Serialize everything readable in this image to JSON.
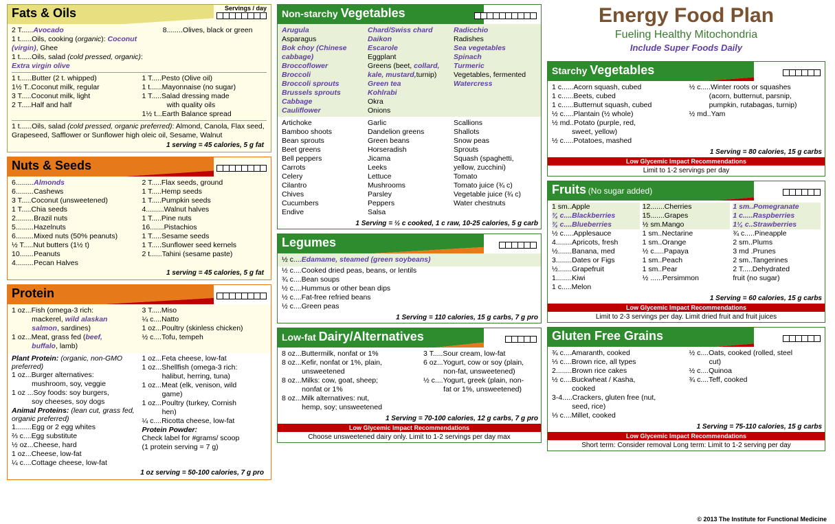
{
  "colors": {
    "yellow": "#fffce8",
    "olive": "#a8a050",
    "orange": "#e67a1a",
    "green": "#2e8b2e",
    "red": "#c00000",
    "purple": "#5f3fa3",
    "brown": "#7a5230",
    "tint": "#e8f0d8",
    "greenBorder": "#3a7a2e"
  },
  "title": {
    "h1": "Energy Food Plan",
    "h2": "Fueling Healthy Mitochondria",
    "h3": "Include Super Foods Daily"
  },
  "copyright": "© 2013 The Institute for Functional Medicine",
  "servingsLabel": "Servings / day",
  "cards": {
    "fats": {
      "title": [
        "Fats & Oils"
      ],
      "boxes": 8,
      "border": "#a8a050",
      "bg": "#fffce8",
      "top": [
        [
          "2 T......",
          "Avocado",
          true
        ],
        [
          "1 t......Oils, cooking (organic): ",
          "Coconut (virgin)",
          true,
          ", Ghee"
        ],
        [
          "1 t......Oils, salad (cold pressed, organic): ",
          "Extra virgin olive",
          true
        ]
      ],
      "topRight": [
        "8........Olives, black or green"
      ],
      "mid": {
        "left": [
          "1 t......Butter (2 t. whipped)",
          "1½ T..Coconut milk, regular",
          "3 T.....Coconut milk, light",
          "2 T.....Half and half"
        ],
        "right": [
          "1 T.....Pesto (Olive oil)",
          "1 t......Mayonnaise (no sugar)",
          "1 T.....Salad dressing made",
          "            with quality oils",
          "1½ t...Earth Balance spread"
        ]
      },
      "bottom": "1 t......Oils, salad (cold pressed, organic preferred): Almond, Canola, Flax seed, Grapeseed, Safflower or Sunflower high oleic oil, Sesame, Walnut",
      "note": "1 serving = 45 calories, 5 g fat"
    },
    "nuts": {
      "title": [
        "Nuts & Seeds"
      ],
      "boxes": 8,
      "border": "#e67a1a",
      "bg": "#fffce8",
      "left": [
        [
          "6.........",
          "Almonds",
          true
        ],
        [
          "6.........Cashews"
        ],
        [
          "3 T.....Coconut (unsweetened)"
        ],
        [
          "1 T.....Chia seeds"
        ],
        [
          "2.........Brazil nuts"
        ],
        [
          "5.........Hazelnuts"
        ],
        [
          "6.........Mixed nuts (50% peanuts)"
        ],
        [
          "½ T.....Nut butters (1½ t)"
        ],
        [
          "10.......Peanuts"
        ],
        [
          "4.........Pecan Halves"
        ]
      ],
      "right": [
        [
          "2 T.....Flax seeds, ground"
        ],
        [
          "1 T.....Hemp seeds"
        ],
        [
          "1 T.....Pumpkin seeds"
        ],
        [
          "4.........Walnut halves"
        ],
        [
          "1 T.....Pine nuts"
        ],
        [
          "16.......Pistachios"
        ],
        [
          "1 T.....Sesame seeds"
        ],
        [
          "1 T.....Sunflower seed kernels"
        ],
        [
          "2 t......Tahini (sesame paste)"
        ]
      ],
      "note": "1 serving = 45 calories, 5 g fat"
    },
    "protein": {
      "title": [
        "Protein"
      ],
      "boxes": 8,
      "border": "#e67a1a",
      "bg": "#ffffff",
      "topLeft": [
        "1 oz...Fish (omega-3 rich: mackerel, <em>wild alaskan salmon</em>, sardines)",
        "1 oz...Meat, grass fed (<em>beef, buffalo</em>, lamb)"
      ],
      "topRight": [
        "3 T.....Miso",
        "¼ c....Natto",
        "1 oz...Poultry (skinless chicken)",
        "½ c....Tofu, tempeh"
      ],
      "subLeft": "Plant Protein: (organic, non-GMO preferred)",
      "plantLeft": [
        "1 oz...Burger alternatives: mushroom, soy, veggie",
        "1 oz ...Soy foods: soy burgers, soy cheeses, soy dogs"
      ],
      "subAnimal": "Animal Proteins: (lean cut, grass fed, organic preferred)",
      "animalLeft": [
        "1........Egg or 2 egg whites",
        "⅔ c....Egg substitute",
        "½ oz...Cheese, hard",
        "1 oz...Cheese, low-fat",
        "¼ c....Cottage cheese, low-fat"
      ],
      "rightCol": [
        "1 oz...Feta cheese, low-fat",
        "1 oz...Shellfish (omega-3 rich: halibut, herring, tuna)",
        "1 oz...Meat (elk, venison, wild game)",
        "1 oz...Poultry (turkey, Cornish hen)",
        "¼ c....Ricotta cheese, low-fat"
      ],
      "powder": [
        "Protein Powder:",
        "Check label for #grams/ scoop",
        "(1 protein serving = 7 g)"
      ],
      "note": "1 oz serving = 50-100 calories, 7 g pro"
    },
    "veg": {
      "titlePre": "Non-starchy ",
      "titleBig": "Vegetables",
      "boxes": 10,
      "border": "#3a7a2e",
      "emRows": [
        [
          "Arugula",
          "Chard/Swiss chard",
          "Radicchio"
        ],
        [
          "<n>Asparagus</n>",
          "Daikon",
          "<n>Radishes</n>"
        ],
        [
          "Bok choy (Chinese",
          "Escarole",
          "Sea vegetables"
        ],
        [
          "cabbage)",
          "<n>Eggplant</n>",
          "Spinach"
        ],
        [
          "Broccoflower",
          "<n>Greens (beet, </n>collard,",
          "Turmeric"
        ],
        [
          "Broccoli",
          "kale, mustard,<n>turnip)</n>",
          "<n>Vegetables, fermented</n>"
        ],
        [
          "Broccoli sprouts",
          "Green tea",
          "Watercress"
        ],
        [
          "Brussels sprouts",
          "Kohlrabi",
          ""
        ],
        [
          "Cabbage",
          "<n>Okra</n>",
          ""
        ],
        [
          "Cauliflower",
          "<n>Onions</n>",
          ""
        ]
      ],
      "plain": [
        [
          "Artichoke",
          "Garlic",
          "Scallions"
        ],
        [
          "Bamboo shoots",
          "Dandelion greens",
          "Shallots"
        ],
        [
          "Bean sprouts",
          "Green beans",
          "Snow peas"
        ],
        [
          "Beet greens",
          "Horseradish",
          "Sprouts"
        ],
        [
          "Bell peppers",
          "Jicama",
          "Squash (spaghetti,"
        ],
        [
          "Carrots",
          "Leeks",
          "   yellow, zucchini)"
        ],
        [
          "Celery",
          "Lettuce",
          "Tomato"
        ],
        [
          "Cilantro",
          "Mushrooms",
          "Tomato juice (¾ c)"
        ],
        [
          "Chives",
          "Parsley",
          "Vegetable juice (¾ c)"
        ],
        [
          "Cucumbers",
          "Peppers",
          "Water chestnuts"
        ],
        [
          "Endive",
          "Salsa",
          ""
        ]
      ],
      "note": "1 Serving = ½ c cooked, 1 c raw, 10-25 calories, 5 g carb"
    },
    "legumes": {
      "title": [
        "Legumes"
      ],
      "boxes": 6,
      "border": "#3a7a2e",
      "items": [
        [
          "½ c....",
          "Edamame, steamed (green soybeans)",
          true
        ],
        [
          "½ c....Cooked dried peas, beans, or lentils"
        ],
        [
          "¾ c....Bean soups"
        ],
        [
          "½ c....Hummus or other bean dips"
        ],
        [
          "½ c....Fat-free refried beans"
        ],
        [
          "½ c....Green peas"
        ]
      ],
      "note": "1 Serving = 110 calories, 15 g carbs, 7 g pro"
    },
    "dairy": {
      "titlePre": "Low-fat ",
      "titleBig": "Dairy/Alternatives",
      "boxes": 5,
      "border": "#3a7a2e",
      "left": [
        "8 oz...Buttermilk, nonfat or 1%",
        "8 oz...Kefir, nonfat or 1%, plain, unsweetened",
        "8 oz...Milks: cow, goat, sheep; nonfat or 1%",
        "8 oz...Milk alternatives: nut, hemp, soy; unsweetened"
      ],
      "right": [
        "3 T.....Sour cream, low-fat",
        "6 oz...Yogurt, cow or soy (plain, non-fat, unsweetened)",
        "½ c....Yogurt, greek (plain, non-fat or 1%, unsweetened)"
      ],
      "note": "1 Serving = 70-100 calories, 12 g carbs, 7 g pro",
      "redTitle": "Low Glycemic Impact Recommendations",
      "redText": "Choose unsweetened dairy only. Limit to 1-2 servings per day max"
    },
    "starchy": {
      "titlePre": "Starchy ",
      "titleBig": "Vegetables",
      "boxes": 6,
      "border": "#3a7a2e",
      "left": [
        "1 c......Acorn squash, cubed",
        "1 c......Beets, cubed",
        "1 c......Butternut squash, cubed",
        "½ c.....Plantain (½ whole)",
        "½ md..Potato (purple, red, sweet, yellow)",
        "½ c.....Potatoes, mashed"
      ],
      "right": [
        "½ c.....Winter roots or squashes",
        "            (acorn, butternut, parsnip,",
        "            pumpkin, rutabagas, turnip)",
        "½ md..Yam"
      ],
      "note": "1 Serving = 80 calories, 15 g carbs",
      "redTitle": "Low Glycemic Impact Recommendations",
      "redText": "Limit to 1-2 servings per day"
    },
    "fruits": {
      "title": "Fruits",
      "sub": "(No sugar added)",
      "boxes": 6,
      "border": "#3a7a2e",
      "cols": [
        [
          "1 sm..Apple",
          "<em>¾ c....Blackberries</em>",
          "<em>¾ c....Blueberries</em>",
          "½ c.....Applesauce",
          "4........Apricots, fresh",
          "½.......Banana, med",
          "3........Dates or Figs",
          "½.......Grapefruit",
          "1........Kiwi",
          "1 c.....Melon"
        ],
        [
          "12.......Cherries",
          "15.......Grapes",
          "½ sm.Mango",
          "1 sm..Nectarine",
          "1 sm..Orange",
          "½ c.....Papaya",
          "1 sm..Peach",
          "1 sm..Pear",
          "½ ......Persimmon"
        ],
        [
          "<em>1 sm..Pomegranate</em>",
          "<em>1 c.....Raspberries</em>",
          "<em>1¼ c..Strawberries</em>",
          "¾ c.....Pineapple",
          "2 sm..Plums",
          "3 md .Prunes",
          "2 sm..Tangerines",
          "2 T.....Dehydrated",
          "            fruit (no sugar)"
        ]
      ],
      "note": "1 Serving = 60 calories, 15 g carbs",
      "redTitle": "Low Glycemic Impact Recommendations",
      "redText": "Limit to 2-3 servings per day. Limit dried fruit and fruit juices"
    },
    "grains": {
      "title": "Gluten Free Grains",
      "boxes": 6,
      "border": "#3a7a2e",
      "left": [
        "¾ c....Amaranth, cooked",
        "⅓ c....Brown rice, all types",
        "2........Brown rice cakes",
        "½ c....Buckwheat / Kasha, cooked",
        "3-4.....Crackers, gluten free (nut, seed, rice)",
        "⅓ c....Millet, cooked"
      ],
      "right": [
        "½ c....Oats, cooked (rolled, steel cut)",
        "½ c....Quinoa",
        "¾ c....Teff, cooked"
      ],
      "note": "1 Serving = 75-110 calories, 15 g carbs",
      "redTitle": "Low Glycemic Impact Recommendations",
      "redText": "Short term: Consider removal     Long term: Limit to 1-2  serving per day"
    }
  }
}
